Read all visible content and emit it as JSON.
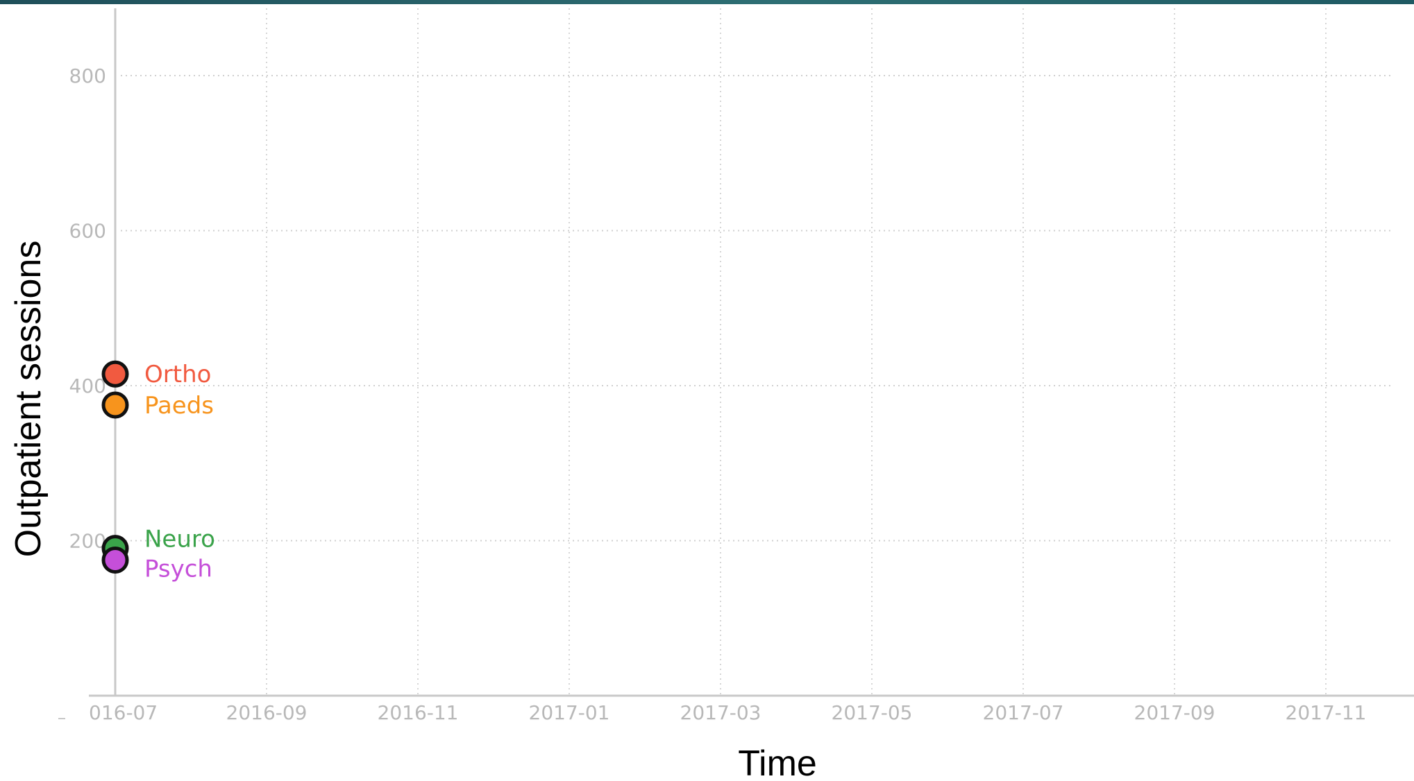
{
  "chart_data": {
    "type": "scatter",
    "xlabel": "Time",
    "ylabel": "Outpatient sessions",
    "x_ticks": [
      "016-07",
      "2016-09",
      "2016-11",
      "2017-01",
      "2017-03",
      "2017-05",
      "2017-07",
      "2017-09",
      "2017-11"
    ],
    "y_ticks": [
      "200",
      "400",
      "600",
      "800"
    ],
    "xlim": [
      "2016-07",
      "2017-12"
    ],
    "ylim": [
      0,
      880
    ],
    "grid": true,
    "series": [
      {
        "name": "Ortho",
        "x": [
          "2016-07"
        ],
        "values": [
          415
        ],
        "color": "#f15a40"
      },
      {
        "name": "Paeds",
        "x": [
          "2016-07"
        ],
        "values": [
          375
        ],
        "color": "#f7941d"
      },
      {
        "name": "Neuro",
        "x": [
          "2016-07"
        ],
        "values": [
          190
        ],
        "color": "#3aa34a"
      },
      {
        "name": "Psych",
        "x": [
          "2016-07"
        ],
        "values": [
          175
        ],
        "color": "#c54fd9"
      }
    ]
  }
}
